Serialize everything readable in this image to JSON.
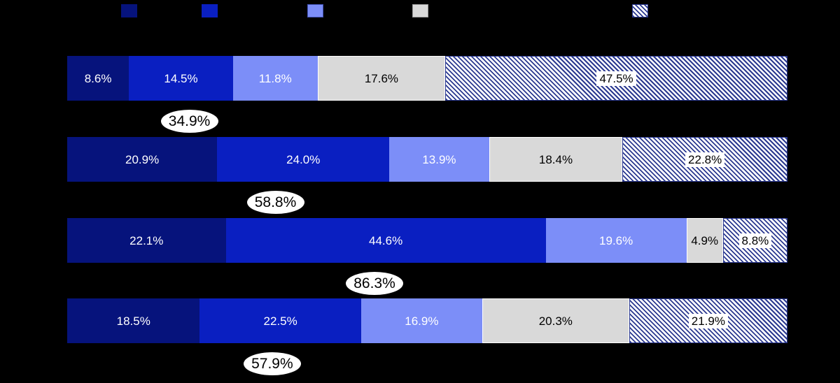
{
  "background_color": "#000000",
  "legend": {
    "swatches": [
      {
        "name": "series-1-swatch",
        "color": "#06137C",
        "hatch": false
      },
      {
        "name": "series-2-swatch",
        "color": "#0A1FC1",
        "hatch": false
      },
      {
        "name": "series-3-swatch",
        "color": "#7C8EF8",
        "hatch": false
      },
      {
        "name": "series-4-swatch",
        "color": "#D9D9D9",
        "hatch": false
      },
      {
        "name": "series-5-swatch",
        "color": "hatch",
        "hatch": true
      }
    ]
  },
  "chart_data": {
    "type": "bar",
    "orientation": "horizontal",
    "stacked": true,
    "grid": false,
    "legend_position": "top",
    "series_colors": [
      "#06137C",
      "#0A1FC1",
      "#7C8EF8",
      "#D9D9D9",
      "hatch"
    ],
    "hatch_stripe_color": "#2B3990",
    "hatch_background_color": "#FFFFFF",
    "xlim": [
      0,
      100
    ],
    "rows": [
      {
        "values": [
          8.6,
          14.5,
          11.8,
          17.6,
          47.5
        ],
        "labels": [
          "8.6%",
          "14.5%",
          "11.8%",
          "17.6%",
          "47.5%"
        ],
        "callout_value": 34.9,
        "callout_label": "34.9%"
      },
      {
        "values": [
          20.9,
          24.0,
          13.9,
          18.4,
          22.8
        ],
        "labels": [
          "20.9%",
          "24.0%",
          "13.9%",
          "18.4%",
          "22.8%"
        ],
        "callout_value": 58.8,
        "callout_label": "58.8%"
      },
      {
        "values": [
          22.1,
          44.6,
          19.6,
          4.9,
          8.8
        ],
        "labels": [
          "22.1%",
          "44.6%",
          "19.6%",
          "4.9%",
          "8.8%"
        ],
        "callout_value": 86.3,
        "callout_label": "86.3%"
      },
      {
        "values": [
          18.5,
          22.5,
          16.9,
          20.3,
          21.9
        ],
        "labels": [
          "18.5%",
          "22.5%",
          "16.9%",
          "20.3%",
          "21.9%"
        ],
        "callout_value": 57.9,
        "callout_label": "57.9%"
      }
    ],
    "callout_colors": {
      "background": "#FFFFFF",
      "text": "#000000"
    }
  }
}
